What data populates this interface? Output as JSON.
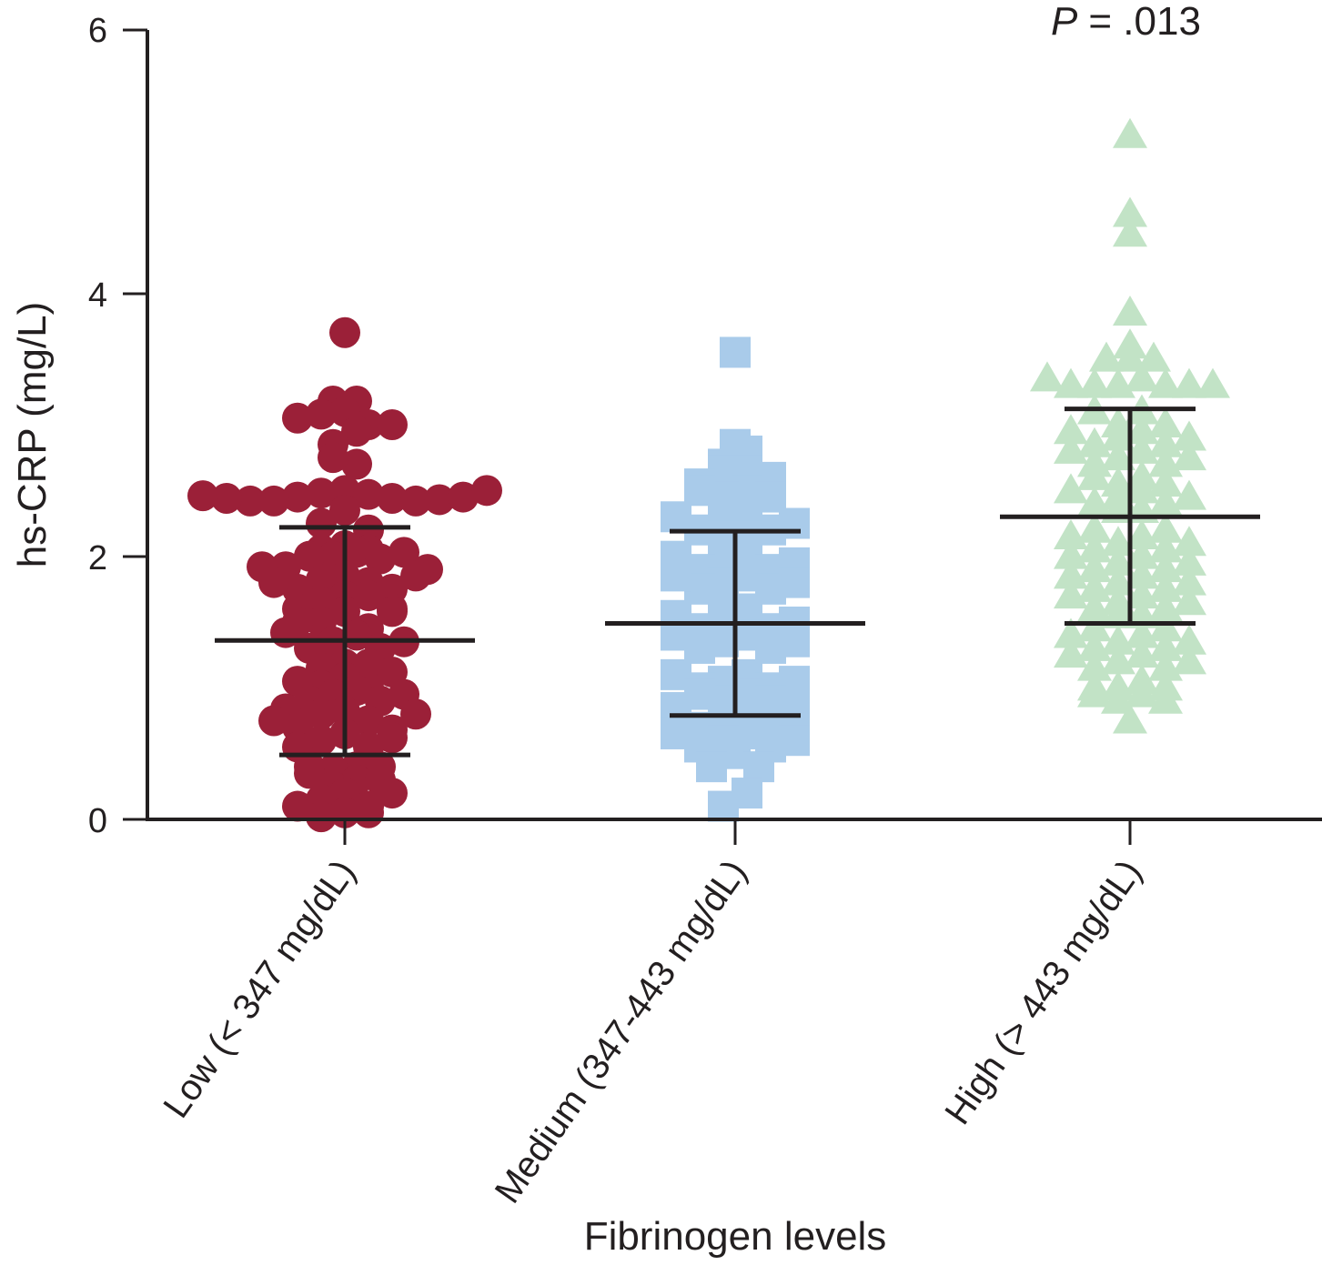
{
  "chart_data": {
    "type": "scatter",
    "subtype": "dot-plot (column scatter) with mean and SD lines",
    "title": "",
    "annotation": {
      "p_label": "P",
      "p_value_text": "= .013"
    },
    "xlabel": "Fibrinogen levels",
    "ylabel": "hs-CRP (mg/L)",
    "ylim": [
      0,
      6
    ],
    "yticks": [
      0,
      2,
      4,
      6
    ],
    "grid": false,
    "legend": null,
    "categories": [
      "Low (< 347 mg/dL)",
      "Medium (347-443 mg/dL)",
      "High (> 443 mg/dL)"
    ],
    "series": [
      {
        "name": "Low (< 347 mg/dL)",
        "marker": "circle",
        "color": "#9b2038",
        "mean": 1.36,
        "sd_upper": 2.22,
        "sd_lower": 0.49,
        "max_outlier": 3.7,
        "values": [
          3.7,
          3.18,
          3.1,
          3.18,
          3.08,
          3.0,
          3.05,
          2.95,
          2.85,
          3.0,
          2.7,
          2.75,
          2.5,
          2.48,
          2.47,
          2.45,
          2.44,
          2.42,
          2.42,
          2.42,
          2.43,
          2.44,
          2.45,
          2.46,
          2.5,
          2.35,
          2.25,
          2.2,
          2.08,
          2.05,
          2.03,
          2.0,
          1.98,
          2.0,
          2.03,
          2.05,
          1.92,
          1.9,
          1.85,
          1.82,
          1.8,
          1.75,
          1.7,
          1.65,
          1.7,
          1.75,
          1.8,
          1.85,
          1.92,
          1.6,
          1.58,
          1.5,
          1.45,
          1.4,
          1.35,
          1.3,
          1.3,
          1.35,
          1.42,
          1.5,
          1.58,
          1.6,
          1.18,
          1.15,
          1.08,
          1.02,
          0.98,
          0.95,
          0.9,
          0.9,
          0.95,
          1.0,
          1.05,
          1.12,
          1.18,
          0.82,
          0.8,
          0.75,
          0.7,
          0.65,
          0.6,
          0.55,
          0.55,
          0.62,
          0.68,
          0.75,
          0.8,
          0.84,
          0.4,
          0.38,
          0.3,
          0.25,
          0.2,
          0.15,
          0.1,
          0.05,
          0.02,
          0.05,
          0.1,
          0.2,
          0.3,
          0.4,
          0.4,
          0.35
        ]
      },
      {
        "name": "Medium (347-443 mg/dL)",
        "marker": "square",
        "color": "#a9cbea",
        "mean": 1.49,
        "sd_upper": 2.19,
        "sd_lower": 0.79,
        "sd_lower_note": "inferred as symmetric with sd_upper; the lower SD bar is not visible in the image",
        "max_outlier": 3.55,
        "values": [
          3.55,
          2.85,
          2.8,
          2.65,
          2.7,
          2.65,
          2.6,
          2.5,
          2.45,
          2.45,
          2.5,
          2.55,
          2.3,
          2.25,
          2.2,
          2.15,
          2.15,
          2.2,
          2.25,
          2.3,
          2.0,
          1.95,
          1.9,
          1.85,
          1.8,
          1.75,
          1.75,
          1.8,
          1.85,
          1.9,
          1.95,
          2.0,
          1.6,
          1.55,
          1.5,
          1.45,
          1.4,
          1.35,
          1.3,
          1.3,
          1.35,
          1.4,
          1.45,
          1.5,
          1.55,
          1.6,
          1.1,
          1.05,
          1.0,
          0.95,
          0.9,
          0.9,
          0.95,
          1.0,
          1.05,
          1.1,
          0.85,
          0.8,
          0.75,
          0.7,
          0.65,
          0.6,
          0.55,
          0.5,
          0.55,
          0.6,
          0.65,
          0.7,
          0.75,
          0.8,
          0.85,
          0.4,
          0.4,
          0.2,
          0.1
        ]
      },
      {
        "name": "High (> 443 mg/dL)",
        "marker": "triangle",
        "color": "#c2e3c6",
        "mean": 2.3,
        "sd_upper": 3.12,
        "sd_lower": 1.49,
        "max_outlier": 5.2,
        "values": [
          5.2,
          4.6,
          4.45,
          3.85,
          3.6,
          3.5,
          3.5,
          3.5,
          3.35,
          3.3,
          3.3,
          3.3,
          3.3,
          3.3,
          3.3,
          3.35,
          3.1,
          3.0,
          3.0,
          3.1,
          2.95,
          2.9,
          2.85,
          2.8,
          2.75,
          2.7,
          2.7,
          2.75,
          2.8,
          2.85,
          2.9,
          2.95,
          2.6,
          2.55,
          2.5,
          2.45,
          2.4,
          2.35,
          2.35,
          2.4,
          2.45,
          2.5,
          2.55,
          2.6,
          2.2,
          2.15,
          2.1,
          2.05,
          2.0,
          1.95,
          1.9,
          1.9,
          1.95,
          2.0,
          2.05,
          2.1,
          2.15,
          2.2,
          1.85,
          1.8,
          1.75,
          1.7,
          1.65,
          1.6,
          1.55,
          1.55,
          1.6,
          1.65,
          1.7,
          1.75,
          1.8,
          1.85,
          1.45,
          1.4,
          1.35,
          1.3,
          1.25,
          1.2,
          1.15,
          1.15,
          1.2,
          1.25,
          1.3,
          1.35,
          1.4,
          1.45,
          1.05,
          1.0,
          0.95,
          0.9,
          0.75,
          0.9,
          0.95,
          1.0,
          1.0
        ]
      }
    ]
  },
  "labels": {
    "y_ticks": [
      "0",
      "2",
      "4",
      "6"
    ],
    "x_categories": [
      "Low (< 347 mg/dL)",
      "Medium (347-443 mg/dL)",
      "High (> 443 mg/dL)"
    ],
    "xlabel": "Fibrinogen levels",
    "ylabel": "hs-CRP (mg/L)",
    "p_label": "P",
    "p_value_text": "= .013"
  }
}
